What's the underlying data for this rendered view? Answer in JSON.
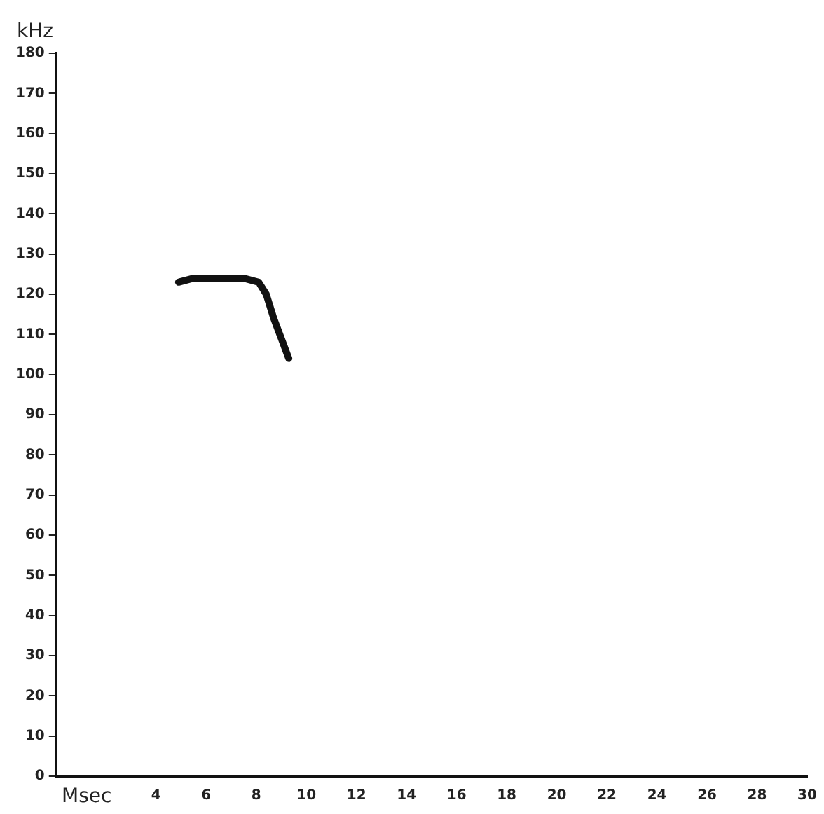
{
  "chart_data": {
    "type": "line",
    "xlabel": "Msec",
    "ylabel": "kHz",
    "x": [
      4.9,
      5.5,
      6.5,
      7.5,
      8.1,
      8.4,
      8.7,
      9.0,
      9.3
    ],
    "series": [
      {
        "color": "#111111",
        "values": [
          123,
          124,
          124,
          124,
          123,
          120,
          114,
          109,
          104
        ]
      }
    ],
    "xlim": [
      0,
      30
    ],
    "xticks": [
      4,
      6,
      8,
      10,
      12,
      14,
      16,
      18,
      20,
      22,
      24,
      26,
      28,
      30
    ],
    "ylim": [
      0,
      180
    ],
    "yticks": [
      0,
      10,
      20,
      30,
      40,
      50,
      60,
      70,
      80,
      90,
      100,
      110,
      120,
      130,
      140,
      150,
      160,
      170,
      180
    ],
    "grid": false,
    "legend": false,
    "marker": "none",
    "line_style": "solid"
  }
}
